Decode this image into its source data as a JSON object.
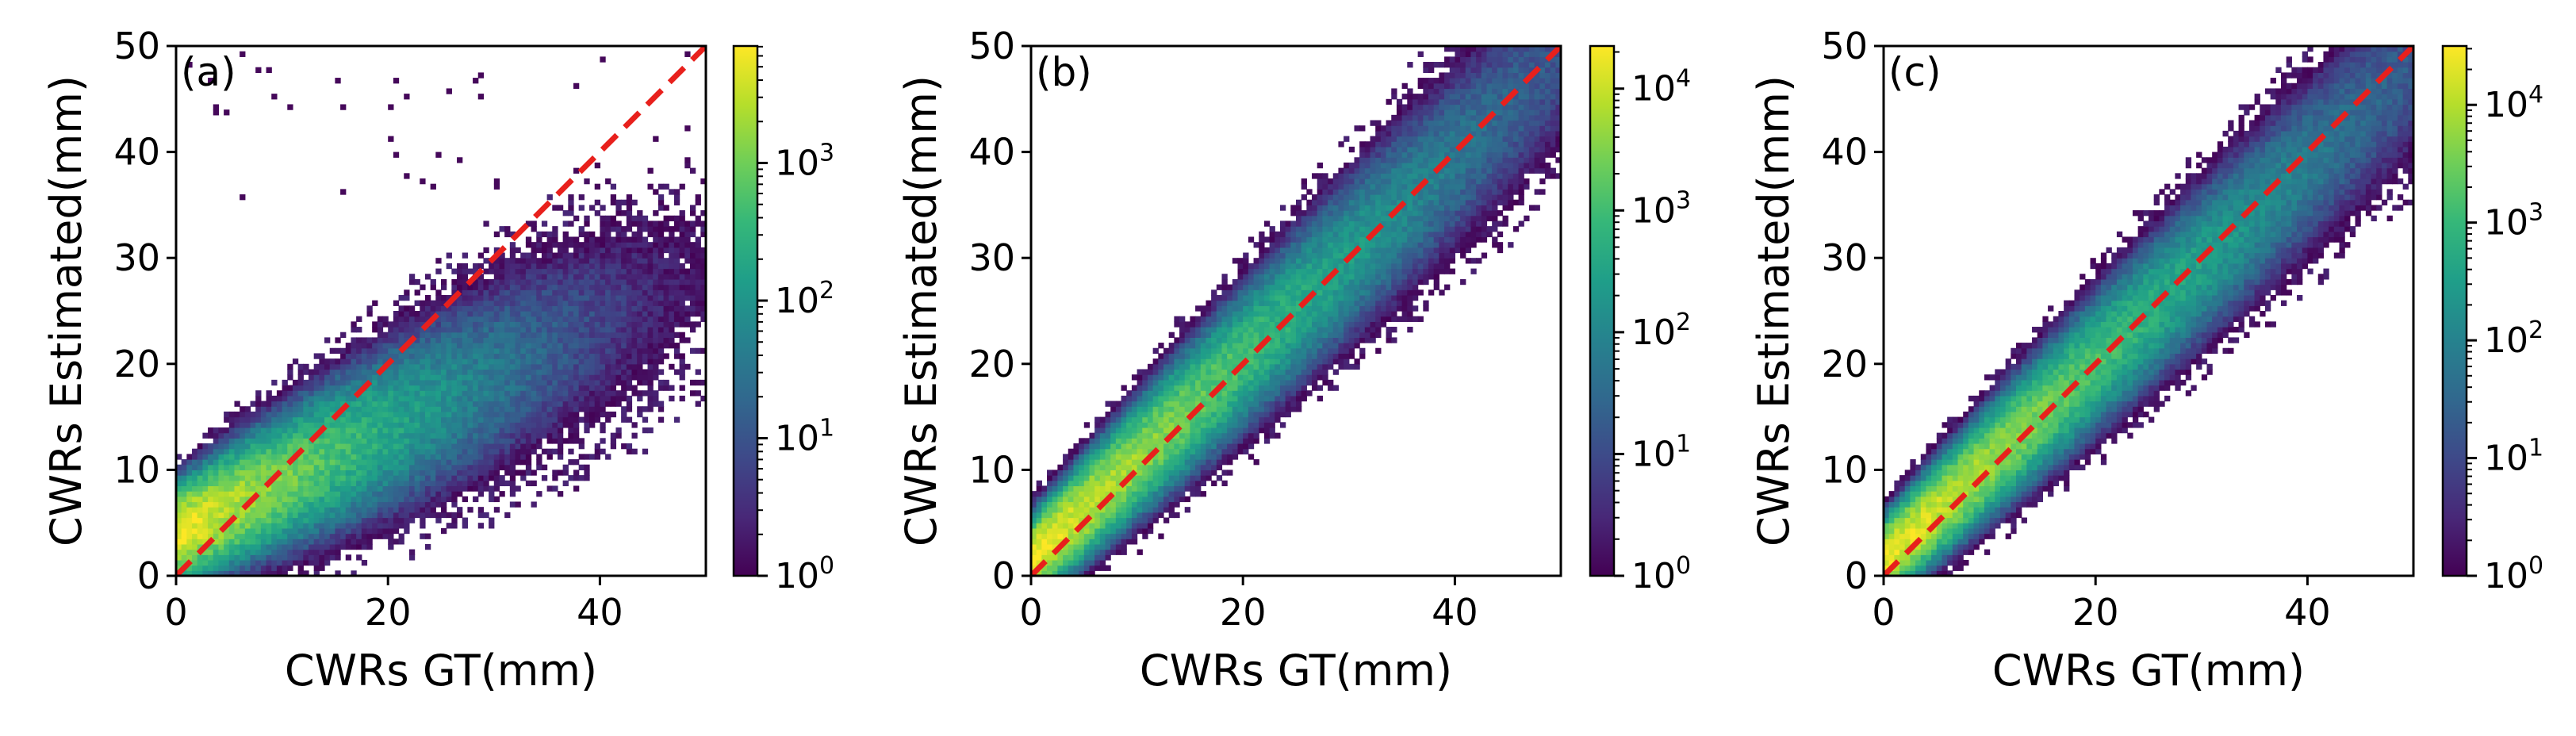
{
  "chart_data": [
    {
      "type": "heatmap",
      "panel_label": "(a)",
      "xlabel": "CWRs GT(mm)",
      "ylabel": "CWRs Estimated(mm)",
      "xlim": [
        0,
        50
      ],
      "ylim": [
        0,
        50
      ],
      "xticks": [
        {
          "value": 0,
          "label": "0"
        },
        {
          "value": 20,
          "label": "20"
        },
        {
          "value": 40,
          "label": "40"
        }
      ],
      "yticks": [
        {
          "value": 0,
          "label": "0"
        },
        {
          "value": 10,
          "label": "10"
        },
        {
          "value": 20,
          "label": "20"
        },
        {
          "value": 30,
          "label": "30"
        },
        {
          "value": 40,
          "label": "40"
        },
        {
          "value": 50,
          "label": "50"
        }
      ],
      "reference_line": {
        "x": [
          0,
          50
        ],
        "y": [
          0,
          50
        ],
        "style": "dashed",
        "color": "#e8201c"
      },
      "density_model": {
        "slope": 0.5,
        "intercept": 4,
        "spread_base": 2.2,
        "spread_growth": 0.1,
        "y_cap": 33,
        "peak_log10": 3.8,
        "decay_x": 12
      },
      "colorbar": {
        "scale": "log",
        "range_log10": [
          0,
          3.85
        ],
        "ticks": [
          {
            "value": 0,
            "base": "10",
            "exp": "0"
          },
          {
            "value": 1,
            "base": "10",
            "exp": "1"
          },
          {
            "value": 2,
            "base": "10",
            "exp": "2"
          },
          {
            "value": 3,
            "base": "10",
            "exp": "3"
          }
        ]
      }
    },
    {
      "type": "heatmap",
      "panel_label": "(b)",
      "xlabel": "CWRs GT(mm)",
      "ylabel": "CWRs Estimated(mm)",
      "xlim": [
        0,
        50
      ],
      "ylim": [
        0,
        50
      ],
      "xticks": [
        {
          "value": 0,
          "label": "0"
        },
        {
          "value": 20,
          "label": "20"
        },
        {
          "value": 40,
          "label": "40"
        }
      ],
      "yticks": [
        {
          "value": 0,
          "label": "0"
        },
        {
          "value": 10,
          "label": "10"
        },
        {
          "value": 20,
          "label": "20"
        },
        {
          "value": 30,
          "label": "30"
        },
        {
          "value": 40,
          "label": "40"
        },
        {
          "value": 50,
          "label": "50"
        }
      ],
      "reference_line": {
        "x": [
          0,
          50
        ],
        "y": [
          0,
          50
        ],
        "style": "dashed",
        "color": "#e8201c"
      },
      "density_model": {
        "slope": 0.95,
        "intercept": 1.5,
        "spread_base": 1.8,
        "spread_growth": 0.07,
        "y_cap": 60,
        "peak_log10": 4.3,
        "decay_x": 14
      },
      "colorbar": {
        "scale": "log",
        "range_log10": [
          0,
          4.35
        ],
        "ticks": [
          {
            "value": 0,
            "base": "10",
            "exp": "0"
          },
          {
            "value": 1,
            "base": "10",
            "exp": "1"
          },
          {
            "value": 2,
            "base": "10",
            "exp": "2"
          },
          {
            "value": 3,
            "base": "10",
            "exp": "3"
          },
          {
            "value": 4,
            "base": "10",
            "exp": "4"
          }
        ]
      }
    },
    {
      "type": "heatmap",
      "panel_label": "(c)",
      "xlabel": "CWRs GT(mm)",
      "ylabel": "CWRs Estimated(mm)",
      "xlim": [
        0,
        50
      ],
      "ylim": [
        0,
        50
      ],
      "xticks": [
        {
          "value": 0,
          "label": "0"
        },
        {
          "value": 20,
          "label": "20"
        },
        {
          "value": 40,
          "label": "40"
        }
      ],
      "yticks": [
        {
          "value": 0,
          "label": "0"
        },
        {
          "value": 10,
          "label": "10"
        },
        {
          "value": 20,
          "label": "20"
        },
        {
          "value": 30,
          "label": "30"
        },
        {
          "value": 40,
          "label": "40"
        },
        {
          "value": 50,
          "label": "50"
        }
      ],
      "reference_line": {
        "x": [
          0,
          50
        ],
        "y": [
          0,
          50
        ],
        "style": "dashed",
        "color": "#e8201c"
      },
      "density_model": {
        "slope": 0.93,
        "intercept": 1.5,
        "spread_base": 1.7,
        "spread_growth": 0.065,
        "y_cap": 60,
        "peak_log10": 4.45,
        "decay_x": 14
      },
      "colorbar": {
        "scale": "log",
        "range_log10": [
          0,
          4.5
        ],
        "ticks": [
          {
            "value": 0,
            "base": "10",
            "exp": "0"
          },
          {
            "value": 1,
            "base": "10",
            "exp": "1"
          },
          {
            "value": 2,
            "base": "10",
            "exp": "2"
          },
          {
            "value": 3,
            "base": "10",
            "exp": "3"
          },
          {
            "value": 4,
            "base": "10",
            "exp": "4"
          }
        ]
      }
    }
  ],
  "colormap": [
    "#440154",
    "#482878",
    "#3e4989",
    "#31688e",
    "#26828e",
    "#1f9e89",
    "#35b779",
    "#6ece58",
    "#b5de2b",
    "#fde725"
  ]
}
